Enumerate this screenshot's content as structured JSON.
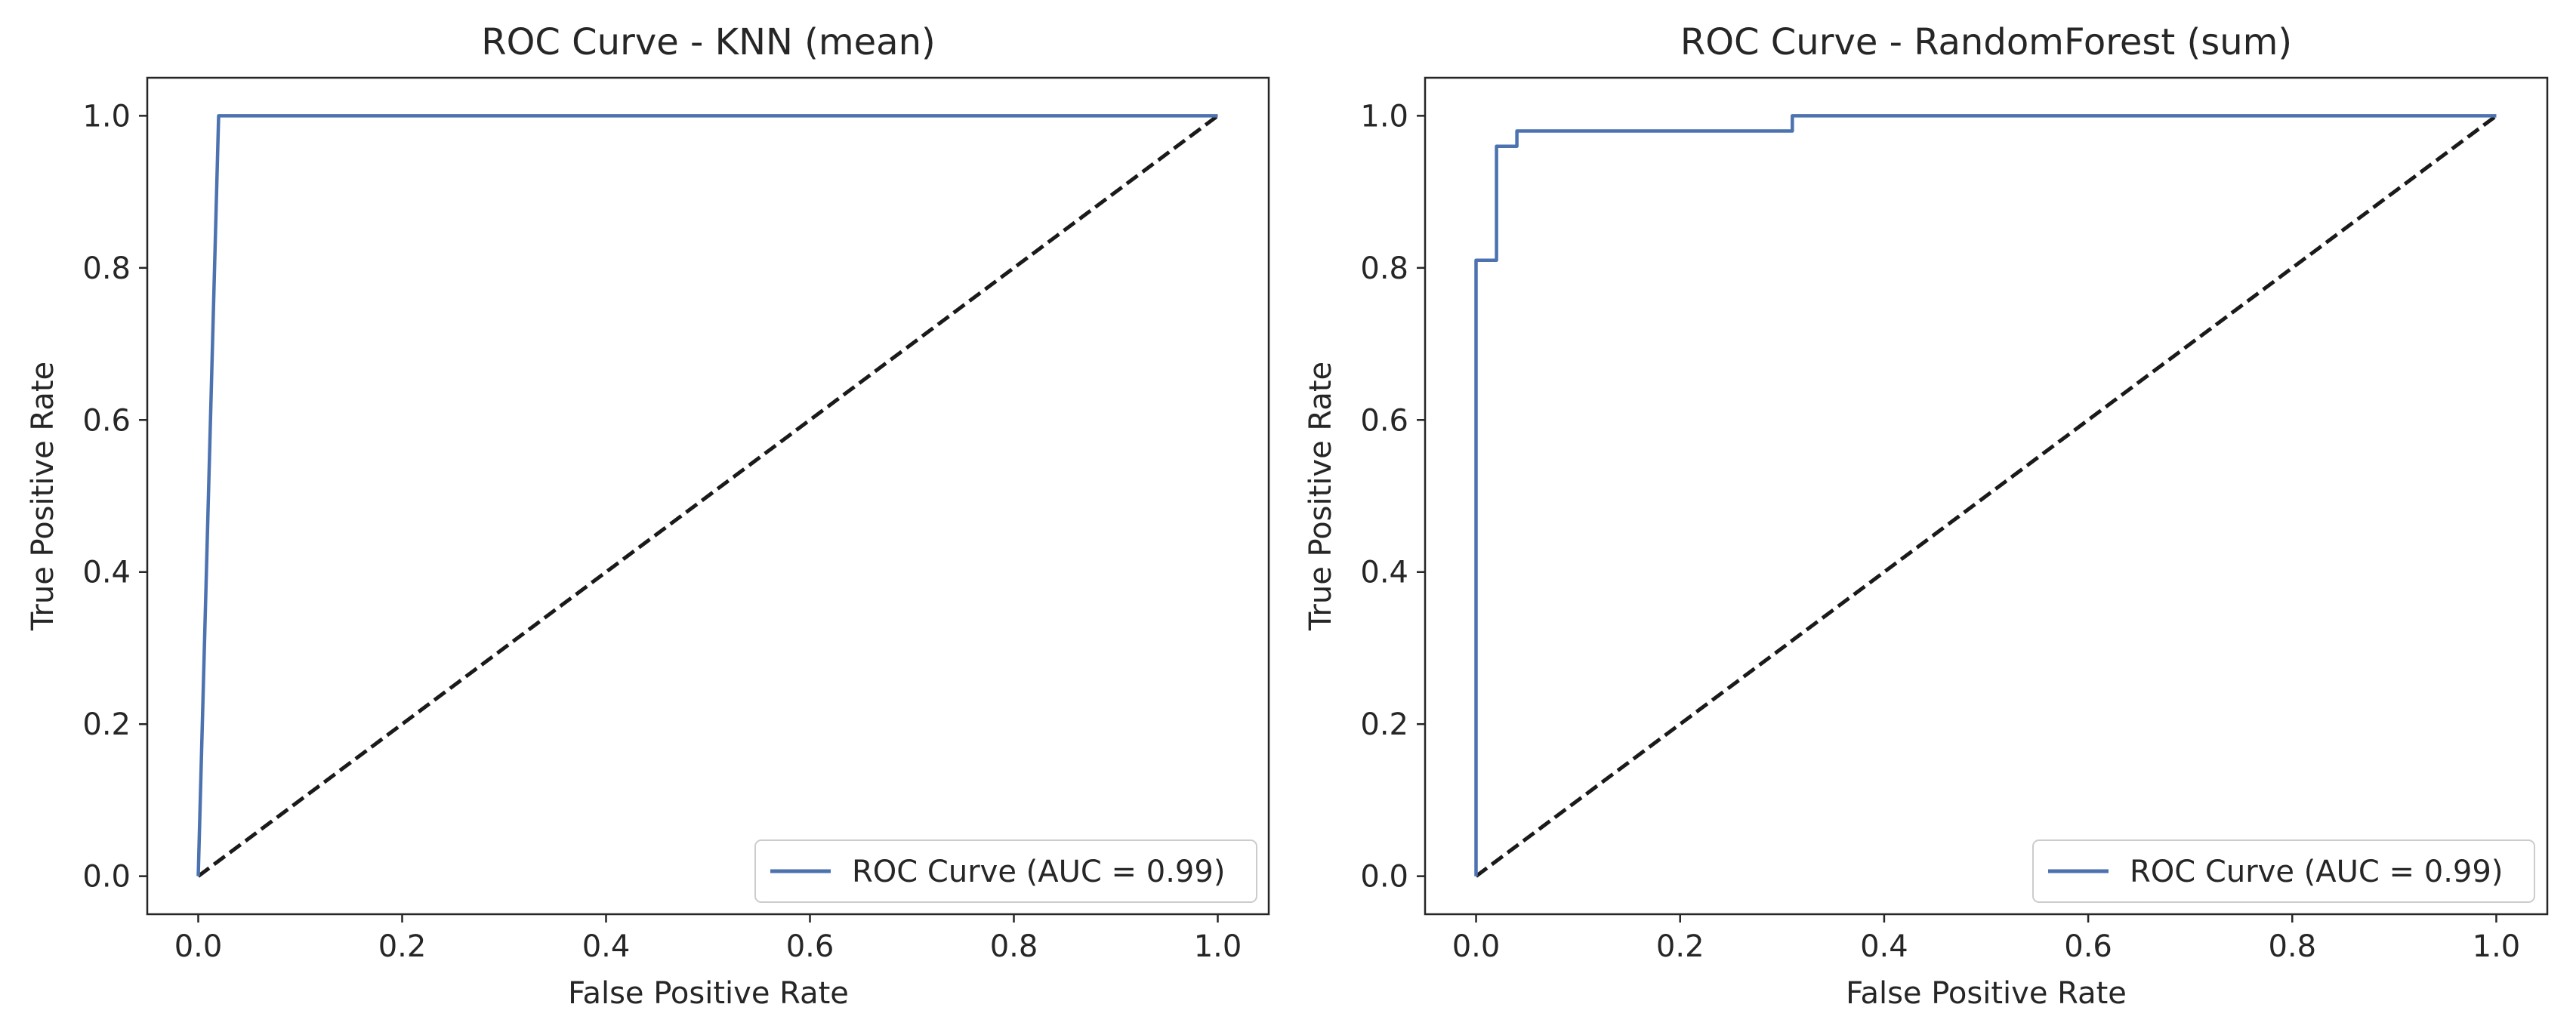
{
  "figure": {
    "colors": {
      "roc_line": "#4c72b0",
      "chance_line": "#1a1a1a",
      "axes": "#262626",
      "legend_border": "#cccccc",
      "background": "#ffffff"
    }
  },
  "chart_data": [
    {
      "type": "line",
      "title": "ROC Curve - KNN (mean)",
      "xlabel": "False Positive Rate",
      "ylabel": "True Positive Rate",
      "xlim": [
        -0.05,
        1.05
      ],
      "ylim": [
        -0.05,
        1.05
      ],
      "xticks": [
        0.0,
        0.2,
        0.4,
        0.6,
        0.8,
        1.0
      ],
      "yticks": [
        0.0,
        0.2,
        0.4,
        0.6,
        0.8,
        1.0
      ],
      "xtick_labels": [
        "0.0",
        "0.2",
        "0.4",
        "0.6",
        "0.8",
        "1.0"
      ],
      "ytick_labels": [
        "0.0",
        "0.2",
        "0.4",
        "0.6",
        "0.8",
        "1.0"
      ],
      "grid": false,
      "legend_loc": "lower right",
      "legend_label": "ROC Curve (AUC = 0.99)",
      "series": [
        {
          "name": "ROC Curve (AUC = 0.99)",
          "style": "solid",
          "color": "#4c72b0",
          "x": [
            0.0,
            0.02,
            1.0
          ],
          "y": [
            0.0,
            1.0,
            1.0
          ]
        },
        {
          "name": "chance",
          "style": "dashed",
          "color": "#1a1a1a",
          "x": [
            0.0,
            1.0
          ],
          "y": [
            0.0,
            1.0
          ]
        }
      ]
    },
    {
      "type": "line",
      "title": "ROC Curve - RandomForest (sum)",
      "xlabel": "False Positive Rate",
      "ylabel": "True Positive Rate",
      "xlim": [
        -0.05,
        1.05
      ],
      "ylim": [
        -0.05,
        1.05
      ],
      "xticks": [
        0.0,
        0.2,
        0.4,
        0.6,
        0.8,
        1.0
      ],
      "yticks": [
        0.0,
        0.2,
        0.4,
        0.6,
        0.8,
        1.0
      ],
      "xtick_labels": [
        "0.0",
        "0.2",
        "0.4",
        "0.6",
        "0.8",
        "1.0"
      ],
      "ytick_labels": [
        "0.0",
        "0.2",
        "0.4",
        "0.6",
        "0.8",
        "1.0"
      ],
      "grid": false,
      "legend_loc": "lower right",
      "legend_label": "ROC Curve (AUC = 0.99)",
      "series": [
        {
          "name": "ROC Curve (AUC = 0.99)",
          "style": "solid",
          "color": "#4c72b0",
          "x": [
            0.0,
            0.0,
            0.02,
            0.02,
            0.04,
            0.04,
            0.31,
            0.31,
            1.0
          ],
          "y": [
            0.0,
            0.81,
            0.81,
            0.96,
            0.96,
            0.98,
            0.98,
            1.0,
            1.0
          ]
        },
        {
          "name": "chance",
          "style": "dashed",
          "color": "#1a1a1a",
          "x": [
            0.0,
            1.0
          ],
          "y": [
            0.0,
            1.0
          ]
        }
      ]
    }
  ]
}
